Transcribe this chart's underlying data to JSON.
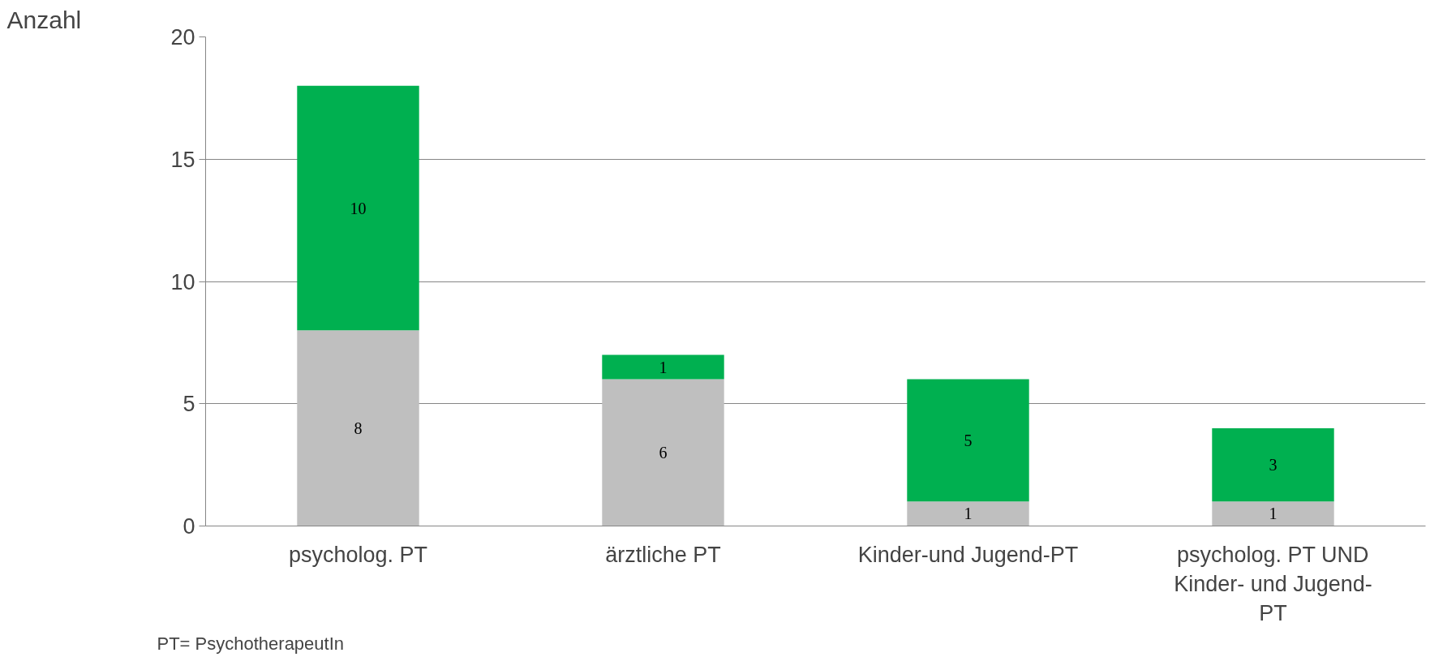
{
  "chart_data": {
    "type": "bar",
    "stacked": true,
    "ylabel": "Anzahl",
    "categories": [
      "psycholog. PT",
      "ärztliche PT",
      "Kinder-und Jugend-PT",
      "psycholog. PT UND Kinder- und Jugend-PT"
    ],
    "series": [
      {
        "color": "#bfbfbf",
        "values": [
          8,
          6,
          1,
          1
        ]
      },
      {
        "color": "#00b050",
        "values": [
          10,
          1,
          5,
          3
        ]
      }
    ],
    "ylim": [
      0,
      20
    ],
    "yticks": [
      0,
      5,
      10,
      15,
      20
    ],
    "grid": "y",
    "data_labels": true,
    "annotations": [
      "PT= PsychotherapeutIn"
    ]
  }
}
